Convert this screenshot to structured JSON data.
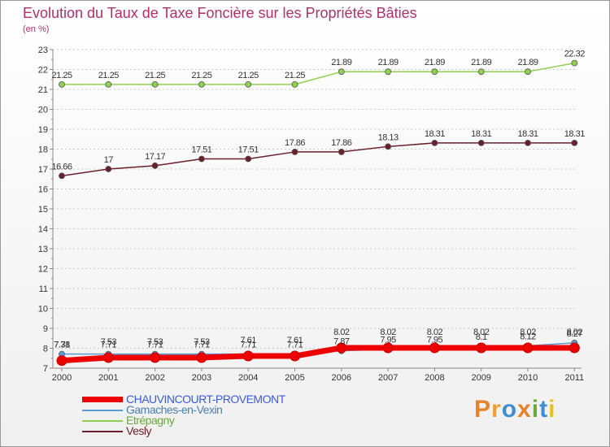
{
  "chart_data": {
    "type": "line",
    "title": "Evolution du Taux de Taxe Foncière sur les Propriétés Bâties",
    "subtitle": "(en %)",
    "xlabel": "",
    "ylabel": "(en %)",
    "ylim": [
      7,
      23
    ],
    "yticks": [
      7,
      8,
      9,
      10,
      11,
      12,
      13,
      14,
      15,
      16,
      17,
      18,
      19,
      20,
      21,
      22,
      23
    ],
    "categories": [
      "2000",
      "2001",
      "2002",
      "2003",
      "2004",
      "2005",
      "2006",
      "2007",
      "2008",
      "2009",
      "2010",
      "2011"
    ],
    "series": [
      {
        "name": "CHAUVINCOURT-PROVEMONT",
        "color": "#ee0000",
        "values": [
          7.38,
          7.53,
          7.53,
          7.53,
          7.61,
          7.61,
          8.02,
          8.02,
          8.02,
          8.02,
          8.02,
          8.02
        ],
        "labels": [
          "7.38",
          "7.53",
          "7.53",
          "7.53",
          "7.61",
          "7.61",
          "8.02",
          "8.02",
          "8.02",
          "8.02",
          "8.02",
          "8.02"
        ]
      },
      {
        "name": "Gamaches-en-Vexin",
        "color": "#5b9bd5",
        "values": [
          7.71,
          7.71,
          7.71,
          7.71,
          7.71,
          7.71,
          7.87,
          7.95,
          7.95,
          8.1,
          8.12,
          8.27
        ],
        "labels": [
          "7.71",
          "7.71",
          "7.71",
          "7.71",
          "7.71",
          "7.71",
          "7.87",
          "7.95",
          "7.95",
          "8.1",
          "8.12",
          "8.27"
        ]
      },
      {
        "name": "Etrépagny",
        "color": "#8fd14f",
        "values": [
          21.25,
          21.25,
          21.25,
          21.25,
          21.25,
          21.25,
          21.89,
          21.89,
          21.89,
          21.89,
          21.89,
          22.32
        ],
        "labels": [
          "21.25",
          "21.25",
          "21.25",
          "21.25",
          "21.25",
          "21.25",
          "21.89",
          "21.89",
          "21.89",
          "21.89",
          "21.89",
          "22.32"
        ]
      },
      {
        "name": "Vesly",
        "color": "#6b1f2a",
        "values": [
          16.66,
          17,
          17.17,
          17.51,
          17.51,
          17.86,
          17.86,
          18.13,
          18.31,
          18.31,
          18.31,
          18.31
        ],
        "labels": [
          "16.66",
          "17",
          "17.17",
          "17.51",
          "17.51",
          "17.86",
          "17.86",
          "18.13",
          "18.31",
          "18.31",
          "18.31",
          "18.31"
        ]
      }
    ]
  },
  "logo": {
    "letters": [
      "P",
      "r",
      "o",
      "x",
      "i",
      "t",
      "i"
    ]
  }
}
